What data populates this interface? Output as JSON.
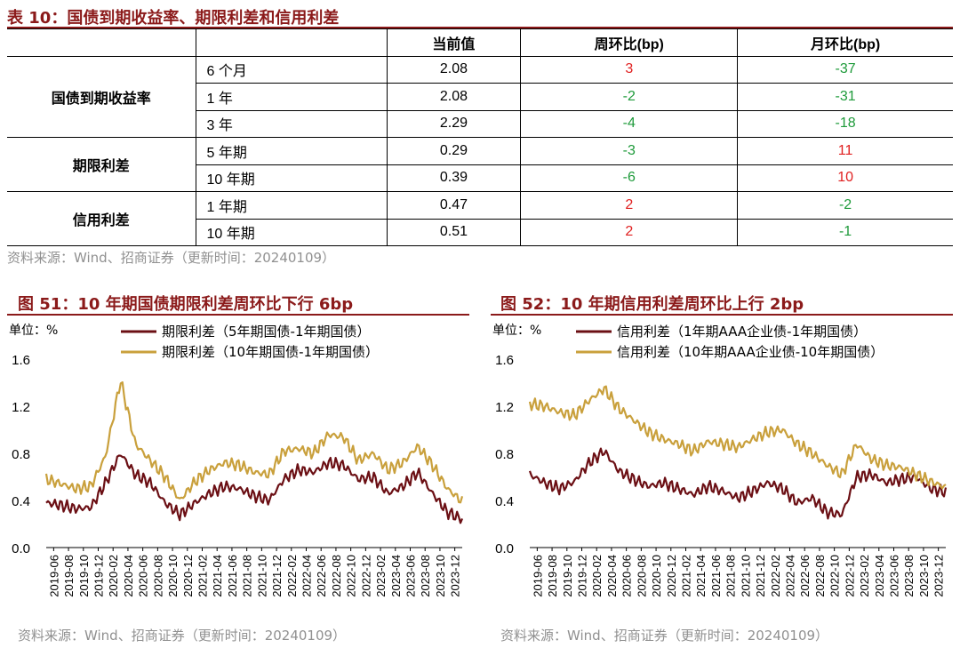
{
  "table_section": {
    "title": "表 10：国债到期收益率、期限利差和信用利差",
    "headers": [
      "",
      "",
      "当前值",
      "周环比(bp)",
      "月环比(bp)"
    ],
    "groups": [
      {
        "name": "国债到期收益率",
        "rows": [
          {
            "term": "6 个月",
            "value": "2.08",
            "wow": "3",
            "wow_color": "red",
            "mom": "-37",
            "mom_color": "green"
          },
          {
            "term": "1 年",
            "value": "2.08",
            "wow": "-2",
            "wow_color": "green",
            "mom": "-31",
            "mom_color": "green"
          },
          {
            "term": "3 年",
            "value": "2.29",
            "wow": "-4",
            "wow_color": "green",
            "mom": "-18",
            "mom_color": "green"
          }
        ]
      },
      {
        "name": "期限利差",
        "rows": [
          {
            "term": "5 年期",
            "value": "0.29",
            "wow": "-3",
            "wow_color": "green",
            "mom": "11",
            "mom_color": "red"
          },
          {
            "term": "10 年期",
            "value": "0.39",
            "wow": "-6",
            "wow_color": "green",
            "mom": "10",
            "mom_color": "red"
          }
        ]
      },
      {
        "name": "信用利差",
        "rows": [
          {
            "term": "1 年期",
            "value": "0.47",
            "wow": "2",
            "wow_color": "red",
            "mom": "-2",
            "mom_color": "green"
          },
          {
            "term": "10 年期",
            "value": "0.51",
            "wow": "2",
            "wow_color": "red",
            "mom": "-1",
            "mom_color": "green"
          }
        ]
      }
    ],
    "source": "资料来源：Wind、招商证券（更新时间：20240109）"
  },
  "colors": {
    "title": "#8b1a1a",
    "series_dark": "#6b0f14",
    "series_gold": "#c9a03c",
    "up": "#e02020",
    "down": "#1e9a3a",
    "source": "#909090"
  },
  "chart_data": [
    {
      "type": "line",
      "title": "图 51：10 年期国债期限利差周环比下行 6bp",
      "unit_label": "单位：%",
      "yticks": [
        "1.6",
        "1.2",
        "0.8",
        "0.4",
        "0.0"
      ],
      "ylim": [
        0,
        1.6
      ],
      "grid": false,
      "legend_position": "top",
      "x_tick_labels": [
        "2019-06",
        "2019-08",
        "2019-10",
        "2019-12",
        "2020-02",
        "2020-04",
        "2020-06",
        "2020-08",
        "2020-10",
        "2020-12",
        "2021-02",
        "2021-04",
        "2021-06",
        "2021-08",
        "2021-10",
        "2021-12",
        "2022-02",
        "2022-04",
        "2022-06",
        "2022-08",
        "2022-10",
        "2022-12",
        "2023-02",
        "2023-04",
        "2023-06",
        "2023-08",
        "2023-10",
        "2023-12"
      ],
      "series": [
        {
          "name": "期限利差（5年期国债-1年期国债）",
          "color": "#6b0f14",
          "values": [
            0.38,
            0.36,
            0.33,
            0.34,
            0.55,
            0.8,
            0.62,
            0.55,
            0.38,
            0.28,
            0.38,
            0.46,
            0.52,
            0.5,
            0.44,
            0.4,
            0.58,
            0.66,
            0.64,
            0.72,
            0.7,
            0.58,
            0.6,
            0.46,
            0.52,
            0.64,
            0.46,
            0.3,
            0.24
          ]
        },
        {
          "name": "期限利差（10年期国债-1年期国债）",
          "color": "#c9a03c",
          "values": [
            0.58,
            0.54,
            0.5,
            0.52,
            0.78,
            1.42,
            0.88,
            0.74,
            0.6,
            0.4,
            0.56,
            0.66,
            0.72,
            0.7,
            0.64,
            0.62,
            0.82,
            0.84,
            0.8,
            0.96,
            0.94,
            0.74,
            0.8,
            0.66,
            0.72,
            0.86,
            0.7,
            0.5,
            0.39
          ]
        }
      ]
    },
    {
      "type": "line",
      "title": "图 52：10 年期信用利差周环比上行 2bp",
      "unit_label": "单位：%",
      "yticks": [
        "1.6",
        "1.2",
        "0.8",
        "0.4",
        "0.0"
      ],
      "ylim": [
        0,
        1.6
      ],
      "grid": false,
      "legend_position": "top",
      "x_tick_labels": [
        "2019-06",
        "2019-08",
        "2019-10",
        "2019-12",
        "2020-02",
        "2020-04",
        "2020-06",
        "2020-08",
        "2020-10",
        "2020-12",
        "2021-02",
        "2021-04",
        "2021-06",
        "2021-08",
        "2021-10",
        "2021-12",
        "2022-02",
        "2022-04",
        "2022-06",
        "2022-08",
        "2022-10",
        "2022-12",
        "2023-02",
        "2023-04",
        "2023-06",
        "2023-08",
        "2023-10",
        "2023-12"
      ],
      "series": [
        {
          "name": "信用利差（1年期AAA企业债-1年期国债）",
          "color": "#6b0f14",
          "values": [
            0.62,
            0.55,
            0.5,
            0.56,
            0.72,
            0.82,
            0.65,
            0.58,
            0.52,
            0.55,
            0.5,
            0.45,
            0.52,
            0.48,
            0.42,
            0.48,
            0.55,
            0.5,
            0.38,
            0.42,
            0.3,
            0.28,
            0.6,
            0.62,
            0.55,
            0.58,
            0.6,
            0.5,
            0.47
          ]
        },
        {
          "name": "信用利差（10年期AAA企业债-10年期国债）",
          "color": "#c9a03c",
          "values": [
            1.22,
            1.2,
            1.15,
            1.12,
            1.25,
            1.35,
            1.18,
            1.08,
            0.98,
            0.92,
            0.88,
            0.82,
            0.9,
            0.88,
            0.85,
            0.92,
            0.98,
            1.0,
            0.88,
            0.8,
            0.7,
            0.62,
            0.88,
            0.75,
            0.7,
            0.68,
            0.62,
            0.56,
            0.51
          ]
        }
      ]
    }
  ],
  "sources": [
    "资料来源：Wind、招商证券（更新时间：20240109）",
    "资料来源：Wind、招商证券（更新时间：20240109）"
  ]
}
